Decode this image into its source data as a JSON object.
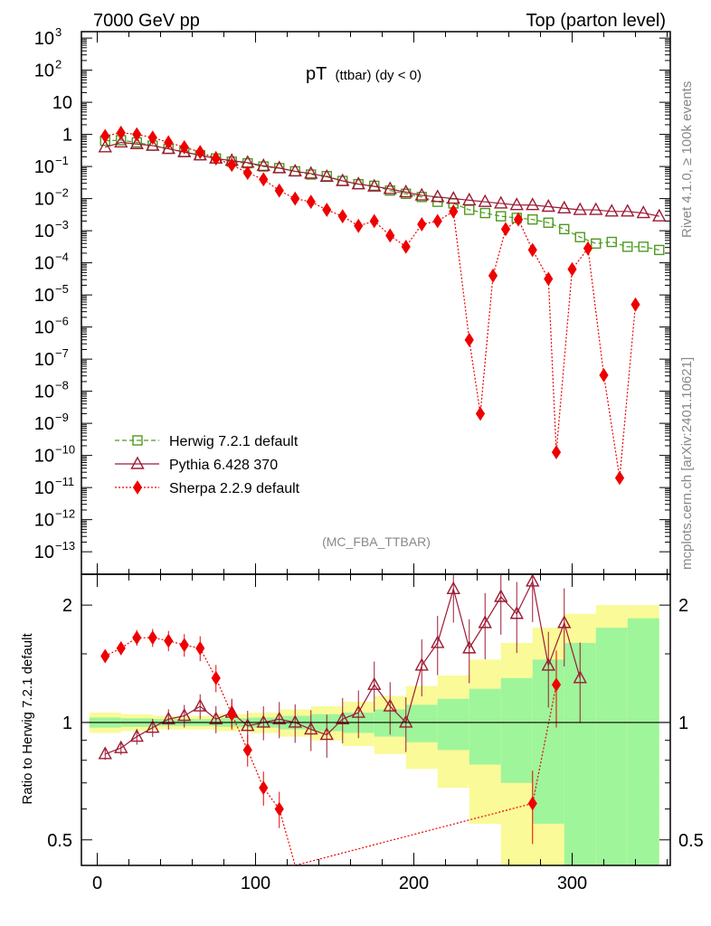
{
  "header": {
    "left": "7000 GeV pp",
    "right": "Top (parton level)"
  },
  "side_labels": {
    "rivet": "Rivet 4.1.0, ≥ 100k events",
    "mcplots": "mcplots.cern.ch [arXiv:2401.10621]"
  },
  "chart_data": [
    {
      "type": "line",
      "panel": "main",
      "title_main": "pT",
      "title_sub": "(ttbar) (dy < 0)",
      "watermark": "(MC_FBA_TTBAR)",
      "yscale": "log",
      "xlim": [
        -10,
        362
      ],
      "ylim_exp": [
        -13.7,
        3.2
      ],
      "ytick_labels": [
        {
          "exp": 3,
          "base": "10",
          "sup": "3"
        },
        {
          "exp": 2,
          "base": "10",
          "sup": "2"
        },
        {
          "exp": 1,
          "base": "10",
          "sup": ""
        },
        {
          "exp": 0,
          "base": "1",
          "sup": ""
        },
        {
          "exp": -1,
          "base": "10",
          "sup": "−1"
        },
        {
          "exp": -2,
          "base": "10",
          "sup": "−2"
        },
        {
          "exp": -3,
          "base": "10",
          "sup": "−3"
        },
        {
          "exp": -4,
          "base": "10",
          "sup": "−4"
        },
        {
          "exp": -5,
          "base": "10",
          "sup": "−5"
        },
        {
          "exp": -6,
          "base": "10",
          "sup": "−6"
        },
        {
          "exp": -7,
          "base": "10",
          "sup": "−7"
        },
        {
          "exp": -8,
          "base": "10",
          "sup": "−8"
        },
        {
          "exp": -9,
          "base": "10",
          "sup": "−9"
        },
        {
          "exp": -10,
          "base": "10",
          "sup": "−10"
        },
        {
          "exp": -11,
          "base": "10",
          "sup": "−11"
        },
        {
          "exp": -12,
          "base": "10",
          "sup": "−12"
        },
        {
          "exp": -13,
          "base": "10",
          "sup": "−13"
        }
      ],
      "series": [
        {
          "name": "Herwig 7.2.1 default",
          "color": "#4d9a1f",
          "marker": "square",
          "x": [
            5,
            15,
            25,
            35,
            45,
            55,
            65,
            75,
            85,
            95,
            105,
            115,
            125,
            135,
            145,
            155,
            165,
            175,
            185,
            195,
            205,
            215,
            225,
            235,
            245,
            255,
            265,
            275,
            285,
            295,
            305,
            315,
            325,
            335,
            345,
            355
          ],
          "log10y": [
            -0.2,
            -0.18,
            -0.25,
            -0.35,
            -0.45,
            -0.55,
            -0.65,
            -0.75,
            -0.85,
            -0.9,
            -1.0,
            -1.05,
            -1.15,
            -1.25,
            -1.3,
            -1.45,
            -1.55,
            -1.6,
            -1.75,
            -1.85,
            -1.95,
            -2.1,
            -2.15,
            -2.35,
            -2.45,
            -2.55,
            -2.6,
            -2.65,
            -2.75,
            -2.95,
            -3.2,
            -3.4,
            -3.35,
            -3.5,
            -3.5,
            -3.6
          ]
        },
        {
          "name": "Pythia 6.428 370",
          "color": "#9c1b34",
          "marker": "triangle",
          "x": [
            5,
            15,
            25,
            35,
            45,
            55,
            65,
            75,
            85,
            95,
            105,
            115,
            125,
            135,
            145,
            155,
            165,
            175,
            185,
            195,
            205,
            215,
            225,
            235,
            245,
            255,
            265,
            275,
            285,
            295,
            305,
            315,
            325,
            335,
            345,
            355
          ],
          "log10y": [
            -0.4,
            -0.25,
            -0.3,
            -0.35,
            -0.45,
            -0.55,
            -0.65,
            -0.75,
            -0.82,
            -0.88,
            -0.98,
            -1.05,
            -1.15,
            -1.22,
            -1.32,
            -1.45,
            -1.55,
            -1.62,
            -1.7,
            -1.8,
            -1.9,
            -1.95,
            -2.0,
            -2.05,
            -2.1,
            -2.15,
            -2.2,
            -2.2,
            -2.25,
            -2.3,
            -2.35,
            -2.35,
            -2.4,
            -2.4,
            -2.45,
            -2.55
          ]
        },
        {
          "name": "Sherpa 2.2.9 default",
          "color": "#ee0000",
          "marker": "diamond",
          "x": [
            5,
            15,
            25,
            35,
            45,
            55,
            65,
            75,
            85,
            95,
            105,
            115,
            125,
            135,
            145,
            155,
            165,
            175,
            185,
            195,
            205,
            215,
            225,
            235,
            242,
            250,
            258,
            266,
            275,
            285,
            290,
            300,
            310,
            320,
            330,
            340
          ],
          "log10y": [
            -0.05,
            0.05,
            0.0,
            -0.1,
            -0.25,
            -0.4,
            -0.55,
            -0.75,
            -0.95,
            -1.2,
            -1.4,
            -1.75,
            -2.0,
            -2.1,
            -2.35,
            -2.55,
            -2.85,
            -2.7,
            -3.15,
            -3.5,
            -2.8,
            -2.7,
            -2.4,
            -6.4,
            -8.7,
            -4.4,
            -2.95,
            -2.65,
            -3.6,
            -4.5,
            -9.9,
            -4.2,
            -3.55,
            -7.5,
            -10.7,
            -5.3
          ]
        }
      ]
    },
    {
      "type": "line",
      "panel": "ratio",
      "ylabel": "Ratio to Herwig 7.2.1 default",
      "xlabel": "",
      "yscale": "log",
      "ylim": [
        0.43,
        2.4
      ],
      "ytick_labels": [
        "0.5",
        "1",
        "2"
      ],
      "xlim": [
        -10,
        362
      ],
      "xtick_labels": [
        "0",
        "100",
        "200",
        "300"
      ],
      "band_inner_color": "#9ff59a",
      "band_outer_color": "#fafa98",
      "band_x": [
        5,
        25,
        45,
        65,
        85,
        105,
        125,
        145,
        165,
        185,
        205,
        225,
        245,
        265,
        285,
        305,
        325,
        345
      ],
      "band_inner_half": [
        0.03,
        0.025,
        0.02,
        0.02,
        0.025,
        0.03,
        0.04,
        0.05,
        0.06,
        0.08,
        0.11,
        0.15,
        0.22,
        0.3,
        0.45,
        0.6,
        0.75,
        0.85
      ],
      "band_outer_half": [
        0.06,
        0.05,
        0.04,
        0.04,
        0.05,
        0.06,
        0.08,
        0.1,
        0.13,
        0.17,
        0.24,
        0.32,
        0.45,
        0.6,
        0.75,
        0.9,
        1.0,
        1.0
      ],
      "series": [
        {
          "name": "Pythia 6.428 370",
          "color": "#9c1b34",
          "x": [
            5,
            15,
            25,
            35,
            45,
            55,
            65,
            75,
            85,
            95,
            105,
            115,
            125,
            135,
            145,
            155,
            165,
            175,
            185,
            195,
            205,
            215,
            225,
            235,
            245,
            255,
            265,
            275,
            285,
            295,
            305
          ],
          "y": [
            0.83,
            0.86,
            0.92,
            0.97,
            1.02,
            1.04,
            1.1,
            1.02,
            1.06,
            0.98,
            1.0,
            1.02,
            1.0,
            0.96,
            0.93,
            1.02,
            1.06,
            1.25,
            1.1,
            1.0,
            1.4,
            1.6,
            2.2,
            1.55,
            1.8,
            2.1,
            1.9,
            2.3,
            1.4,
            1.8,
            1.3
          ]
        },
        {
          "name": "Sherpa 2.2.9 default",
          "color": "#ee0000",
          "x": [
            5,
            15,
            25,
            35,
            45,
            55,
            65,
            75,
            85,
            95,
            105,
            115,
            125,
            275,
            290
          ],
          "y": [
            1.48,
            1.55,
            1.65,
            1.65,
            1.62,
            1.58,
            1.55,
            1.3,
            1.05,
            0.85,
            0.68,
            0.6,
            0.42,
            0.62,
            1.25
          ]
        }
      ]
    }
  ]
}
